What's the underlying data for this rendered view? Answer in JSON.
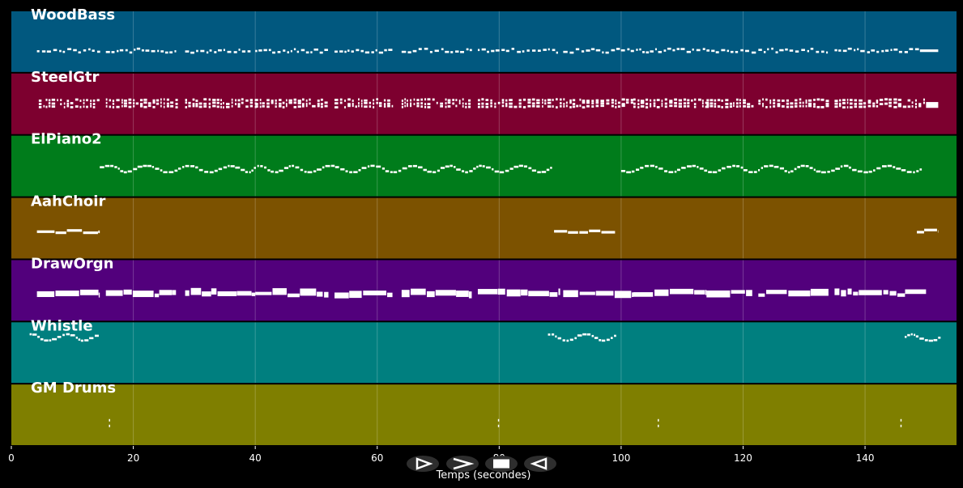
{
  "chart_data": {
    "type": "piano-roll",
    "xlabel": "Temps (secondes)",
    "xlim": [
      0,
      155
    ],
    "xticks": [
      0,
      20,
      40,
      60,
      80,
      100,
      120,
      140
    ],
    "grid": true,
    "tracks": [
      {
        "name": "WoodBass",
        "color": "#01587f",
        "phrases": [
          {
            "start": 4.2,
            "end": 14.5,
            "style": "tiny",
            "level": 0.35
          },
          {
            "start": 15.5,
            "end": 27,
            "style": "tiny",
            "level": 0.35
          },
          {
            "start": 28.5,
            "end": 39.5,
            "style": "tiny",
            "level": 0.35
          },
          {
            "start": 40,
            "end": 52,
            "style": "tiny",
            "level": 0.35
          },
          {
            "start": 53,
            "end": 62.5,
            "style": "tiny",
            "level": 0.35
          },
          {
            "start": 64,
            "end": 75.5,
            "style": "tiny",
            "level": 0.35
          },
          {
            "start": 76.5,
            "end": 90,
            "style": "tiny",
            "level": 0.35
          },
          {
            "start": 90.5,
            "end": 101,
            "style": "tiny",
            "level": 0.35
          },
          {
            "start": 101,
            "end": 114,
            "style": "tiny",
            "level": 0.35
          },
          {
            "start": 114,
            "end": 121.5,
            "style": "tiny",
            "level": 0.35
          },
          {
            "start": 122.5,
            "end": 134,
            "style": "tiny",
            "level": 0.35
          },
          {
            "start": 135,
            "end": 149,
            "style": "tiny",
            "level": 0.35
          },
          {
            "start": 149,
            "end": 152,
            "style": "bar",
            "level": 0.35
          }
        ]
      },
      {
        "name": "SteelGtr",
        "color": "#7d002f",
        "phrases": [
          {
            "start": 4.5,
            "end": 14.5,
            "style": "chord",
            "level": 0.5
          },
          {
            "start": 15.5,
            "end": 27,
            "style": "chord",
            "level": 0.5
          },
          {
            "start": 28.5,
            "end": 40,
            "style": "chord",
            "level": 0.5
          },
          {
            "start": 40,
            "end": 52,
            "style": "chord",
            "level": 0.5
          },
          {
            "start": 53,
            "end": 62.5,
            "style": "chord",
            "level": 0.5
          },
          {
            "start": 64,
            "end": 75.5,
            "style": "chord",
            "level": 0.5
          },
          {
            "start": 76.5,
            "end": 90,
            "style": "chord",
            "level": 0.5
          },
          {
            "start": 90.5,
            "end": 102,
            "style": "chord",
            "level": 0.5
          },
          {
            "start": 102,
            "end": 114,
            "style": "chord",
            "level": 0.5
          },
          {
            "start": 114,
            "end": 121.5,
            "style": "chord",
            "level": 0.5
          },
          {
            "start": 122.5,
            "end": 134,
            "style": "chord",
            "level": 0.5
          },
          {
            "start": 135,
            "end": 150,
            "style": "chord",
            "level": 0.5
          },
          {
            "start": 150,
            "end": 152,
            "style": "block",
            "level": 0.5
          }
        ]
      },
      {
        "name": "ElPiano2",
        "color": "#007c1b",
        "phrases": [
          {
            "start": 14.5,
            "end": 88.5,
            "style": "wave",
            "level": 0.45
          },
          {
            "start": 100,
            "end": 149,
            "style": "wave",
            "level": 0.45
          }
        ]
      },
      {
        "name": "AahChoir",
        "color": "#7c5200",
        "phrases": [
          {
            "start": 4.2,
            "end": 14.5,
            "style": "long",
            "level": 0.45
          },
          {
            "start": 89,
            "end": 99,
            "style": "long",
            "level": 0.45
          },
          {
            "start": 148.5,
            "end": 152,
            "style": "long",
            "level": 0.45
          }
        ]
      },
      {
        "name": "DrawOrgn",
        "color": "#52007c",
        "phrases": [
          {
            "start": 4.2,
            "end": 14.5,
            "style": "block",
            "level": 0.45
          },
          {
            "start": 15.5,
            "end": 27,
            "style": "block",
            "level": 0.45
          },
          {
            "start": 28.5,
            "end": 40,
            "style": "block",
            "level": 0.45
          },
          {
            "start": 40,
            "end": 52,
            "style": "block",
            "level": 0.45
          },
          {
            "start": 53,
            "end": 62.5,
            "style": "block",
            "level": 0.45
          },
          {
            "start": 64,
            "end": 75.5,
            "style": "block",
            "level": 0.45
          },
          {
            "start": 76.5,
            "end": 90,
            "style": "block",
            "level": 0.45
          },
          {
            "start": 90.5,
            "end": 102,
            "style": "block",
            "level": 0.45
          },
          {
            "start": 102,
            "end": 114,
            "style": "block",
            "level": 0.45
          },
          {
            "start": 114,
            "end": 121.5,
            "style": "block",
            "level": 0.45
          },
          {
            "start": 122.5,
            "end": 134,
            "style": "block",
            "level": 0.45
          },
          {
            "start": 135,
            "end": 150,
            "style": "block",
            "level": 0.45
          }
        ]
      },
      {
        "name": "Whistle",
        "color": "#007f7f",
        "phrases": [
          {
            "start": 3,
            "end": 14.5,
            "style": "wave",
            "level": 0.75
          },
          {
            "start": 88,
            "end": 99,
            "style": "wave",
            "level": 0.75
          },
          {
            "start": 146.5,
            "end": 152,
            "style": "wave",
            "level": 0.75
          }
        ]
      },
      {
        "name": "GM Drums",
        "color": "#7f7f00",
        "phrases": [
          {
            "start": 16,
            "end": 16.4,
            "style": "hit",
            "level": 0.35
          },
          {
            "start": 79.8,
            "end": 80.1,
            "style": "hit",
            "level": 0.35
          },
          {
            "start": 106,
            "end": 106.4,
            "style": "hit",
            "level": 0.35
          },
          {
            "start": 145.8,
            "end": 146.2,
            "style": "hit",
            "level": 0.35
          }
        ]
      }
    ]
  },
  "controls": {
    "play_icon": "play-icon",
    "fast_forward_icon": "fast-forward-icon",
    "stop_icon": "stop-icon",
    "rewind_icon": "rewind-icon"
  }
}
